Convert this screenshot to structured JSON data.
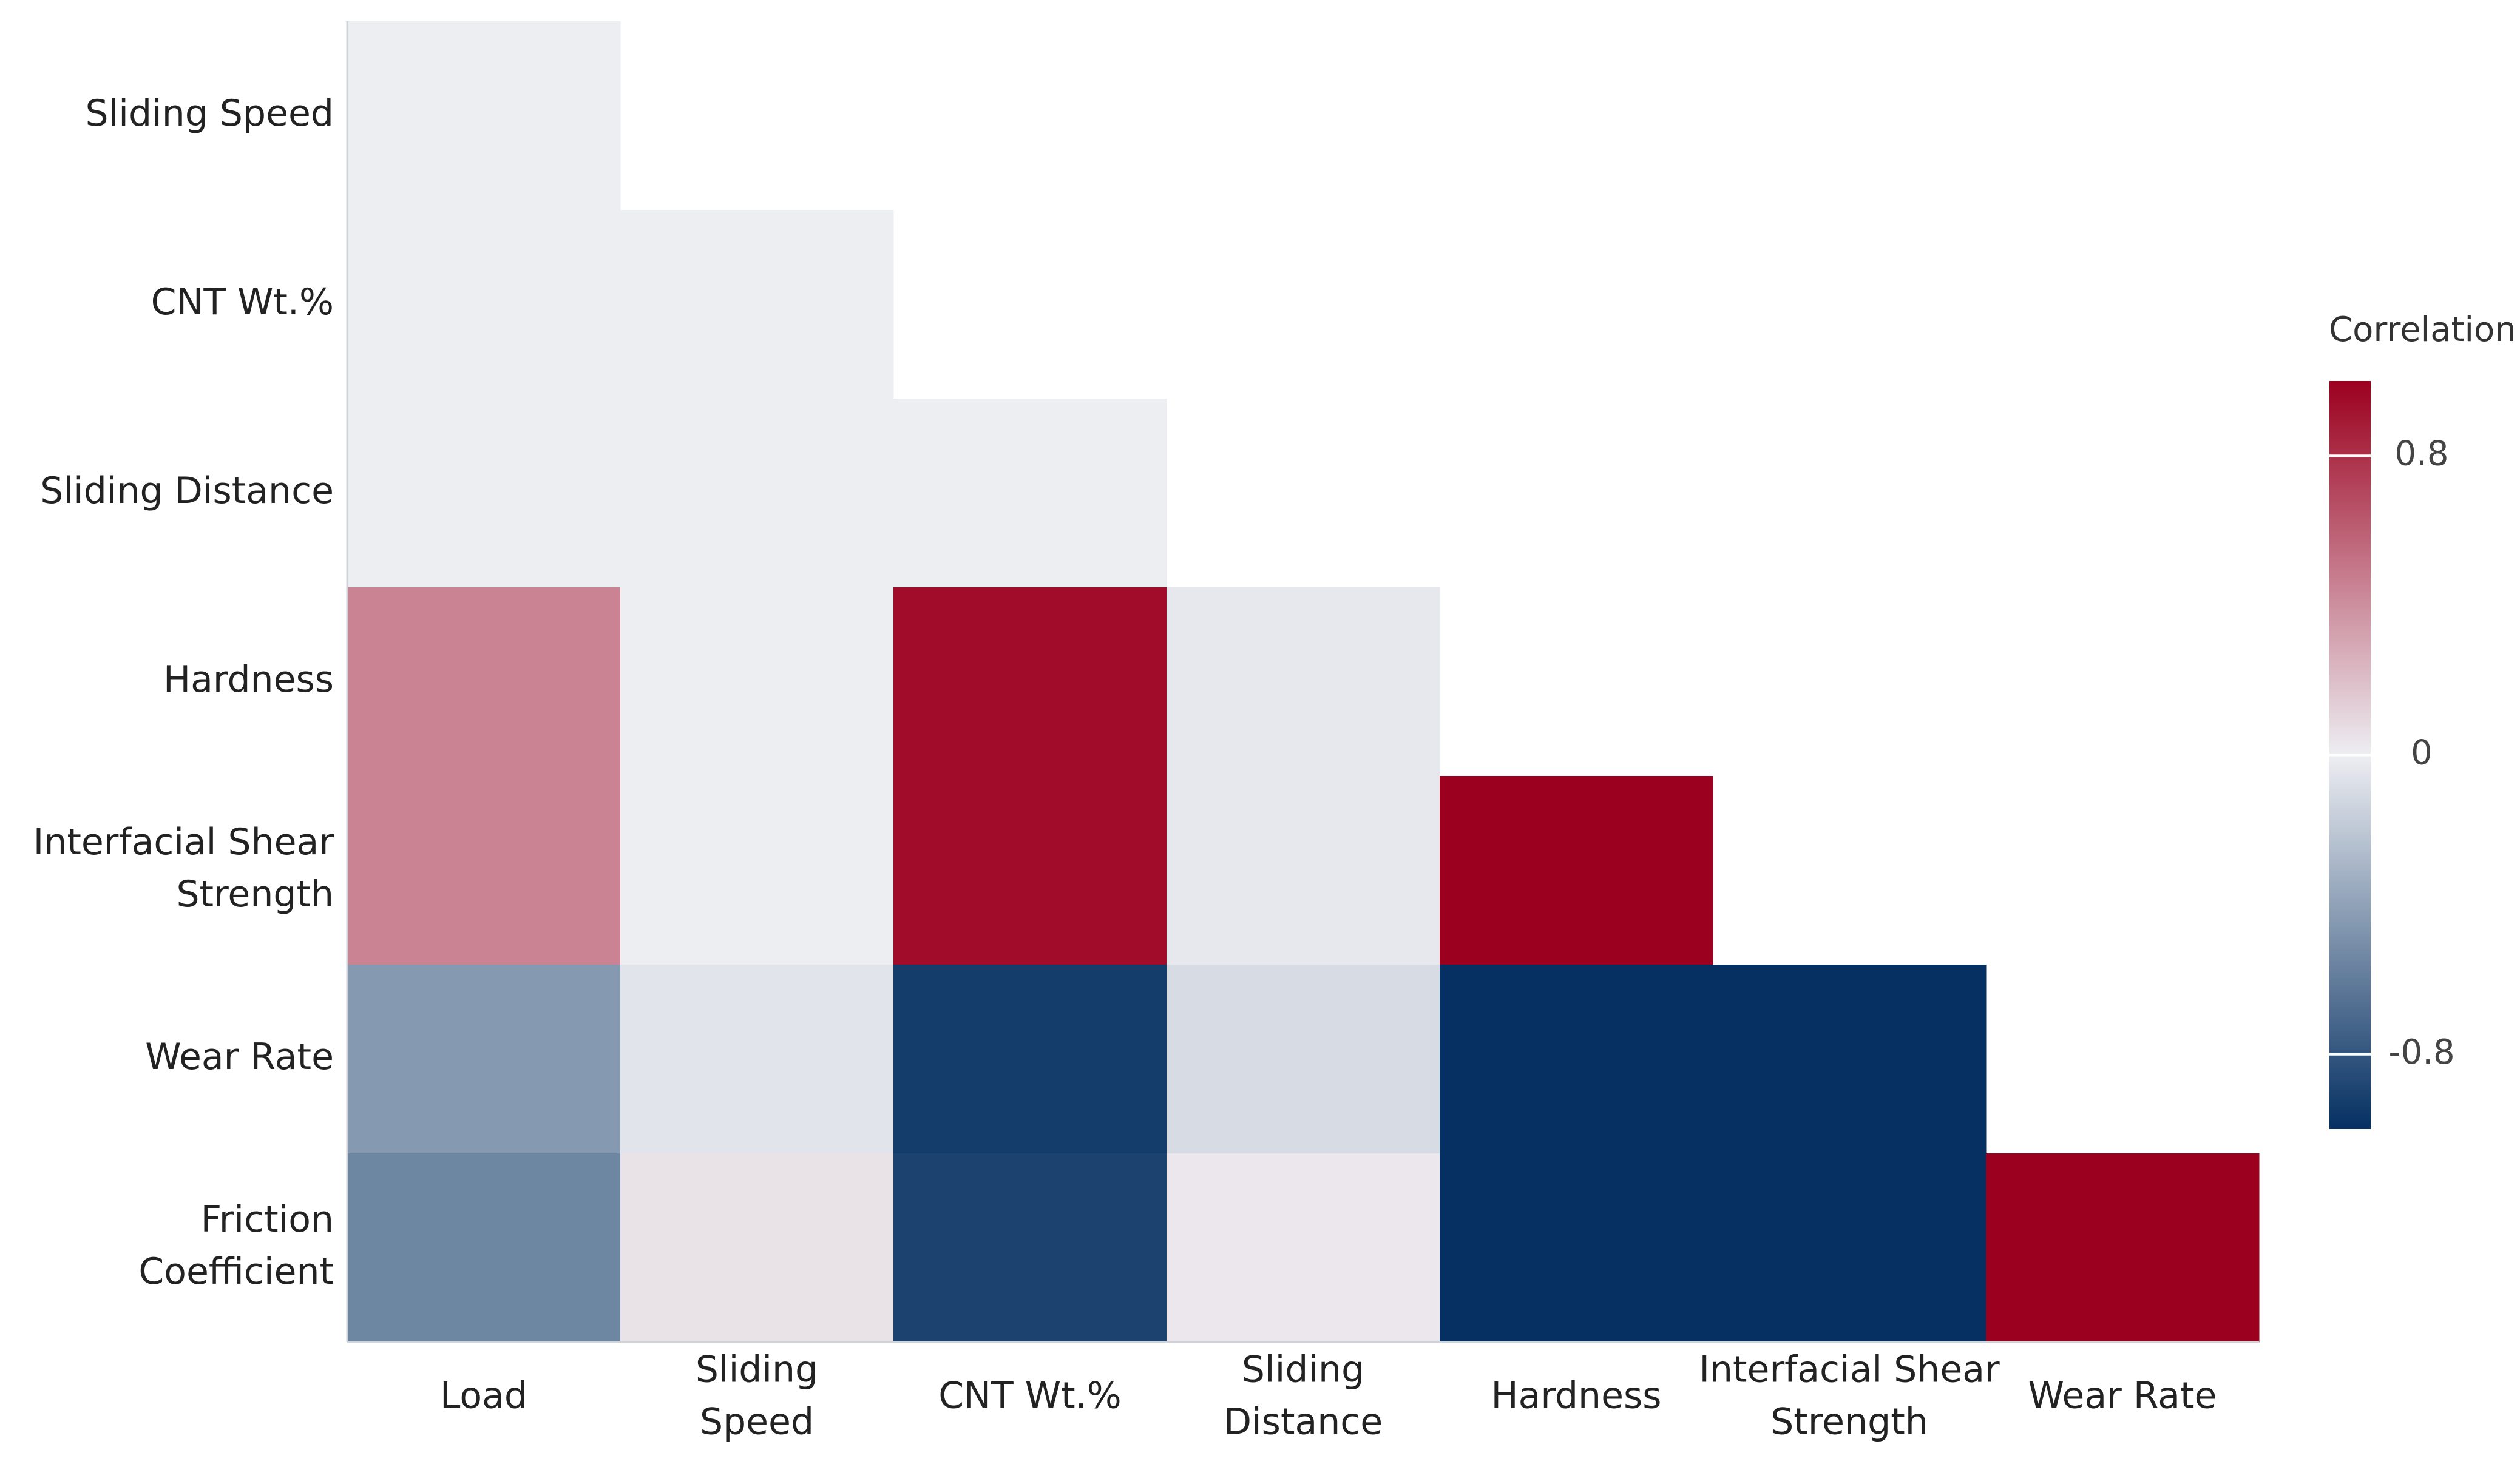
{
  "chart_data": {
    "type": "heatmap",
    "title": "",
    "xlabel": "",
    "ylabel": "",
    "x_categories": [
      [
        "Load"
      ],
      [
        "Sliding",
        "Speed"
      ],
      [
        "CNT Wt.%"
      ],
      [
        "Sliding",
        "Distance"
      ],
      [
        "Hardness"
      ],
      [
        "Interfacial Shear",
        "Strength"
      ],
      [
        "Wear Rate"
      ]
    ],
    "y_categories": [
      [
        "Sliding Speed"
      ],
      [
        "CNT Wt.%"
      ],
      [
        "Sliding Distance"
      ],
      [
        "Hardness"
      ],
      [
        "Interfacial Shear",
        "Strength"
      ],
      [
        "Wear Rate"
      ],
      [
        "Friction",
        "Coefficient"
      ]
    ],
    "values": [
      [
        0.0,
        null,
        null,
        null,
        null,
        null,
        null
      ],
      [
        0.0,
        0.0,
        null,
        null,
        null,
        null,
        null
      ],
      [
        0.0,
        0.0,
        0.0,
        null,
        null,
        null,
        null
      ],
      [
        0.45,
        0.0,
        0.95,
        -0.03,
        null,
        null,
        null
      ],
      [
        0.45,
        0.0,
        0.95,
        -0.03,
        1.0,
        null,
        null
      ],
      [
        -0.45,
        -0.05,
        -0.93,
        -0.1,
        -1.0,
        -1.0,
        null
      ],
      [
        -0.55,
        0.05,
        -0.9,
        0.03,
        -1.0,
        -1.0,
        1.0
      ]
    ],
    "colorscale": {
      "title": "Correlation",
      "range": [
        -1,
        1
      ],
      "ticks": [
        0.8,
        0,
        -0.8
      ],
      "tick_labels": [
        "0.8",
        "0",
        "-0.8"
      ],
      "colors": {
        "negative": "#053061",
        "neutral": "#edeef2",
        "positive": "#9c001f"
      }
    },
    "grid": false,
    "legend_position": "right"
  }
}
